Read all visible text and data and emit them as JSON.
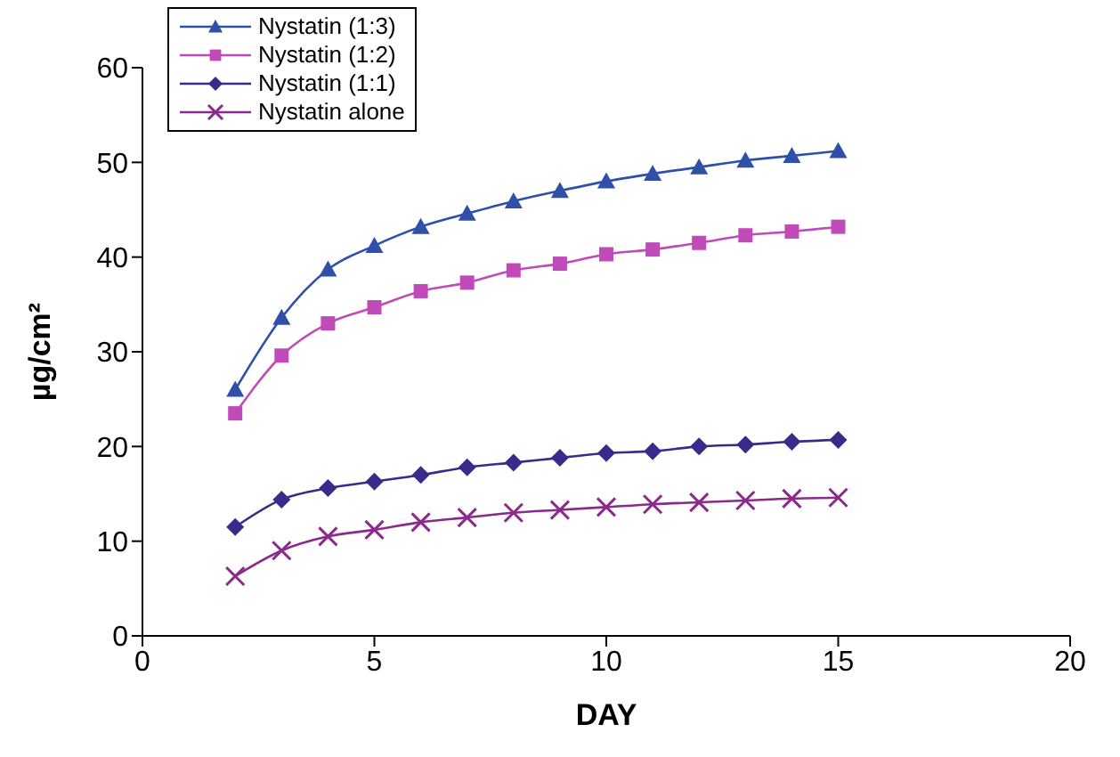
{
  "chart_data": {
    "type": "line",
    "xlabel": "DAY",
    "ylabel": "µg/cm²",
    "x": [
      2,
      3,
      4,
      5,
      6,
      7,
      8,
      9,
      10,
      11,
      12,
      13,
      14,
      15
    ],
    "series": [
      {
        "name": "Nystatin (1:3)",
        "color": "#2f4fa8",
        "marker": "triangle",
        "values": [
          26,
          33.6,
          38.7,
          41.2,
          43.2,
          44.6,
          45.9,
          47.0,
          48.0,
          48.8,
          49.5,
          50.2,
          50.7,
          51.2
        ]
      },
      {
        "name": "Nystatin (1:2)",
        "color": "#c04ab8",
        "marker": "square",
        "values": [
          23.5,
          29.6,
          33.0,
          34.7,
          36.4,
          37.3,
          38.6,
          39.3,
          40.3,
          40.8,
          41.5,
          42.3,
          42.7,
          43.2
        ]
      },
      {
        "name": "Nystatin (1:1)",
        "color": "#3a2a8a",
        "marker": "diamond",
        "values": [
          11.5,
          14.4,
          15.6,
          16.3,
          17.0,
          17.8,
          18.3,
          18.8,
          19.3,
          19.5,
          20.0,
          20.2,
          20.5,
          20.7
        ]
      },
      {
        "name": "Nystatin alone",
        "color": "#8a2a8a",
        "marker": "cross",
        "values": [
          6.3,
          9.0,
          10.5,
          11.2,
          12.0,
          12.5,
          13.0,
          13.3,
          13.6,
          13.9,
          14.1,
          14.3,
          14.5,
          14.6
        ]
      }
    ],
    "xlim": [
      0,
      20
    ],
    "xticks": [
      0,
      5,
      10,
      15,
      20
    ],
    "ylim": [
      0,
      60
    ],
    "yticks": [
      0,
      10,
      20,
      30,
      40,
      50,
      60
    ],
    "grid": false,
    "legend": "top left"
  }
}
